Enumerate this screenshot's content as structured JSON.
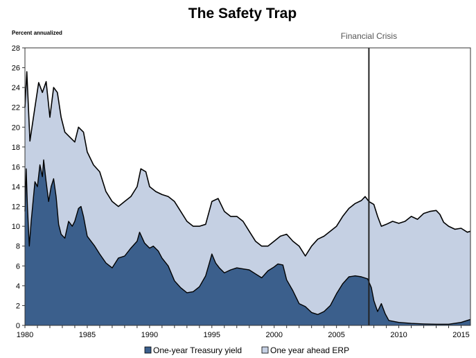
{
  "chart_data": {
    "type": "area",
    "title": "The Safety Trap",
    "ylabel": "Percent annualized",
    "xlabel": "",
    "xlim": [
      1980,
      2015.75
    ],
    "ylim": [
      0,
      28
    ],
    "yticks": [
      0,
      2,
      4,
      6,
      8,
      10,
      12,
      14,
      16,
      18,
      20,
      22,
      24,
      26,
      28
    ],
    "yticklabels": [
      "0",
      "2",
      "4",
      "6",
      "8",
      "10",
      "12",
      "14",
      "16",
      "18",
      "20",
      "22",
      "24",
      "26",
      "28"
    ],
    "xticks": [
      1980,
      1985,
      1990,
      1995,
      2000,
      2005,
      2010,
      2015
    ],
    "xticklabels": [
      "1980",
      "1985",
      "1990",
      "1995",
      "2000",
      "2005",
      "2010",
      "2015"
    ],
    "grid": false,
    "legend_position": "bottom",
    "annotations": [
      {
        "text": "Financial Crisis",
        "x": 2007.6,
        "type": "vertical-line"
      }
    ],
    "colors": {
      "treasury_fill": "#3B5F8C",
      "erp_fill": "#C5D0E3",
      "outline": "#000000",
      "crisis_line": "#222222"
    },
    "series": [
      {
        "name": "One-year Treasury yield",
        "role": "bottom-area",
        "x": [
          1980.0,
          1980.1,
          1980.2,
          1980.35,
          1980.5,
          1980.8,
          1981.0,
          1981.2,
          1981.4,
          1981.5,
          1981.7,
          1981.9,
          1982.1,
          1982.3,
          1982.5,
          1982.7,
          1982.9,
          1983.2,
          1983.5,
          1983.8,
          1984.0,
          1984.3,
          1984.5,
          1984.7,
          1985.0,
          1985.3,
          1985.6,
          1986.0,
          1986.5,
          1987.0,
          1987.5,
          1988.0,
          1988.5,
          1989.0,
          1989.2,
          1989.6,
          1990.0,
          1990.3,
          1990.7,
          1991.0,
          1991.5,
          1992.0,
          1992.5,
          1993.0,
          1993.5,
          1994.0,
          1994.5,
          1994.8,
          1995.0,
          1995.3,
          1995.6,
          1996.0,
          1996.5,
          1997.0,
          1997.5,
          1998.0,
          1998.5,
          1999.0,
          1999.5,
          2000.0,
          2000.3,
          2000.7,
          2001.0,
          2001.5,
          2002.0,
          2002.5,
          2003.0,
          2003.5,
          2004.0,
          2004.5,
          2005.0,
          2005.5,
          2006.0,
          2006.5,
          2007.0,
          2007.5,
          2007.8,
          2008.0,
          2008.3,
          2008.6,
          2008.9,
          2009.2,
          2009.6,
          2010.0,
          2011.0,
          2012.0,
          2013.0,
          2014.0,
          2015.0,
          2015.75
        ],
        "values": [
          11.5,
          15.8,
          12.0,
          8.0,
          10.5,
          14.5,
          14.0,
          16.2,
          15.0,
          16.7,
          14.5,
          12.5,
          14.0,
          14.8,
          13.0,
          10.2,
          9.2,
          8.8,
          10.5,
          10.0,
          10.5,
          11.8,
          12.0,
          11.0,
          9.0,
          8.5,
          8.0,
          7.2,
          6.3,
          5.8,
          6.8,
          7.0,
          7.8,
          8.5,
          9.4,
          8.3,
          7.8,
          8.0,
          7.5,
          6.8,
          6.0,
          4.5,
          3.8,
          3.3,
          3.4,
          3.9,
          5.0,
          6.3,
          7.2,
          6.3,
          5.8,
          5.3,
          5.6,
          5.8,
          5.7,
          5.6,
          5.2,
          4.8,
          5.5,
          5.9,
          6.2,
          6.1,
          4.6,
          3.5,
          2.2,
          1.9,
          1.3,
          1.1,
          1.4,
          2.0,
          3.2,
          4.2,
          4.9,
          5.0,
          4.9,
          4.7,
          3.8,
          2.5,
          1.4,
          2.2,
          1.2,
          0.5,
          0.4,
          0.3,
          0.2,
          0.15,
          0.12,
          0.12,
          0.3,
          0.6
        ]
      },
      {
        "name": "One year ahead ERP",
        "role": "stacked-on-top",
        "total_x": [
          1980.0,
          1980.15,
          1980.4,
          1980.8,
          1981.1,
          1981.4,
          1981.7,
          1982.0,
          1982.3,
          1982.6,
          1982.9,
          1983.2,
          1983.6,
          1984.0,
          1984.3,
          1984.7,
          1985.0,
          1985.5,
          1986.0,
          1986.5,
          1987.0,
          1987.5,
          1988.0,
          1988.5,
          1989.0,
          1989.3,
          1989.7,
          1990.0,
          1990.5,
          1991.0,
          1991.5,
          1992.0,
          1992.5,
          1993.0,
          1993.5,
          1994.0,
          1994.5,
          1995.0,
          1995.5,
          1996.0,
          1996.5,
          1997.0,
          1997.5,
          1998.0,
          1998.5,
          1999.0,
          1999.5,
          2000.0,
          2000.5,
          2001.0,
          2001.5,
          2002.0,
          2002.5,
          2003.0,
          2003.5,
          2004.0,
          2004.5,
          2005.0,
          2005.5,
          2006.0,
          2006.5,
          2007.0,
          2007.3,
          2007.6,
          2008.0,
          2008.3,
          2008.6,
          2009.0,
          2009.5,
          2010.0,
          2010.5,
          2011.0,
          2011.5,
          2012.0,
          2012.5,
          2013.0,
          2013.3,
          2013.6,
          2014.0,
          2014.5,
          2015.0,
          2015.5,
          2015.75
        ],
        "total_values": [
          22.0,
          25.6,
          18.6,
          22.0,
          24.5,
          23.5,
          24.6,
          21.0,
          24.0,
          23.5,
          21.0,
          19.5,
          19.0,
          18.5,
          20.0,
          19.5,
          17.5,
          16.2,
          15.5,
          13.5,
          12.5,
          12.0,
          12.5,
          13.0,
          14.0,
          15.8,
          15.5,
          14.0,
          13.5,
          13.2,
          13.0,
          12.5,
          11.5,
          10.5,
          10.0,
          10.0,
          10.2,
          12.5,
          12.8,
          11.5,
          11.0,
          11.0,
          10.5,
          9.5,
          8.5,
          8.0,
          8.0,
          8.5,
          9.0,
          9.2,
          8.5,
          8.0,
          7.0,
          8.0,
          8.7,
          9.0,
          9.5,
          10.0,
          11.0,
          11.8,
          12.3,
          12.6,
          13.0,
          12.5,
          12.2,
          11.0,
          10.0,
          10.2,
          10.5,
          10.3,
          10.5,
          11.0,
          10.7,
          11.3,
          11.5,
          11.6,
          11.2,
          10.4,
          10.0,
          9.7,
          9.8,
          9.4,
          9.5
        ],
        "description": "Top of the stacked area = Treasury yield + ERP (percent annualized)"
      }
    ]
  }
}
